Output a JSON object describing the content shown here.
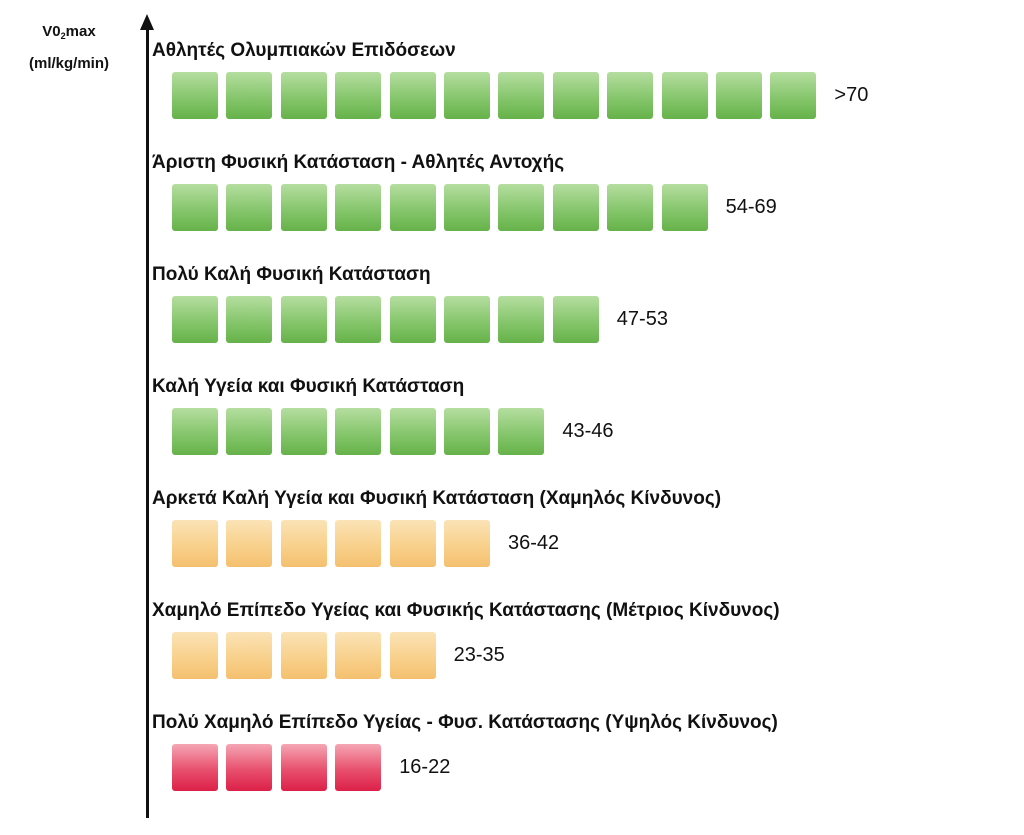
{
  "chart_data": {
    "type": "bar",
    "y_axis_label_parts": {
      "prefix": "V0",
      "subscript": "2",
      "suffix": "max",
      "unit": "(ml/kg/min)"
    },
    "levels": [
      {
        "title": "Αθλητές Ολυμπιακών Επιδόσεων",
        "range": ">70",
        "blocks": 12,
        "color": "green"
      },
      {
        "title": "Άριστη Φυσική Κατάσταση - Αθλητές Αντοχής",
        "range": "54-69",
        "blocks": 10,
        "color": "green"
      },
      {
        "title": "Πολύ Καλή Φυσική Κατάσταση",
        "range": "47-53",
        "blocks": 8,
        "color": "green"
      },
      {
        "title": "Καλή Υγεία και Φυσική Κατάσταση",
        "range": "43-46",
        "blocks": 7,
        "color": "green"
      },
      {
        "title": "Αρκετά Καλή Υγεία και Φυσική Κατάσταση (Χαμηλός Κίνδυνος)",
        "range": "36-42",
        "blocks": 6,
        "color": "orange"
      },
      {
        "title": "Χαμηλό Επίπεδο Υγείας και Φυσικής Κατάστασης (Μέτριος Κίνδυνος)",
        "range": "23-35",
        "blocks": 5,
        "color": "orange"
      },
      {
        "title": "Πολύ Χαμηλό Επίπεδο Υγείας - Φυσ. Κατάστασης (Υψηλός Κίνδυνος)",
        "range": "16-22",
        "blocks": 4,
        "color": "red"
      }
    ],
    "colors": {
      "green": "#7cc163",
      "orange": "#f7cb82",
      "red": "#e23a5c"
    }
  }
}
